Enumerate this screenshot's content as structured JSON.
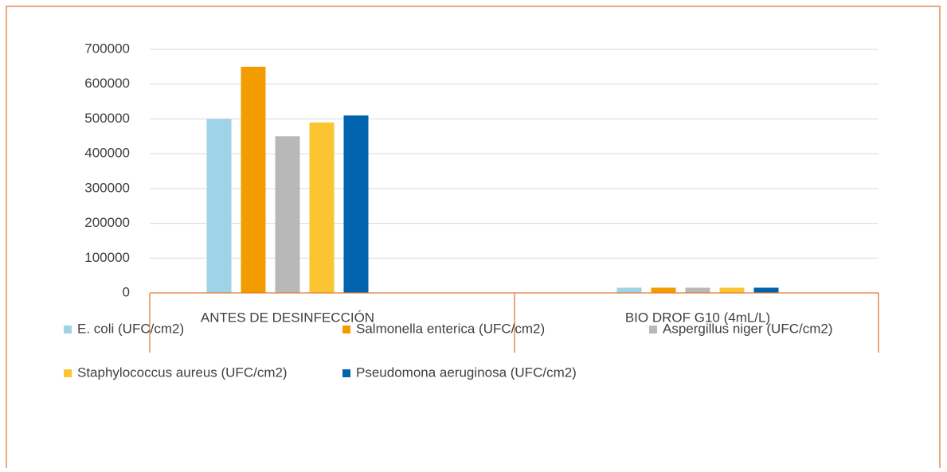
{
  "chart_data": {
    "type": "bar",
    "categories": [
      "ANTES DE DESINFECCIÓN",
      "BIO DROF G10 (4mL/L)"
    ],
    "series": [
      {
        "name": "E. coli (UFC/cm2)",
        "color": "#9fd3e8",
        "values": [
          500000,
          15000
        ]
      },
      {
        "name": "Salmonella enterica (UFC/cm2)",
        "color": "#f39c00",
        "values": [
          650000,
          15000
        ]
      },
      {
        "name": "Aspergillus niger (UFC/cm2)",
        "color": "#b8b8b8",
        "values": [
          450000,
          15000
        ]
      },
      {
        "name": "Staphylococcus aureus (UFC/cm2)",
        "color": "#fbc531",
        "values": [
          490000,
          15000
        ]
      },
      {
        "name": "Pseudomona aeruginosa (UFC/cm2)",
        "color": "#0063ad",
        "values": [
          510000,
          15000
        ]
      }
    ],
    "ylim": [
      0,
      700000
    ],
    "yticks": [
      0,
      100000,
      200000,
      300000,
      400000,
      500000,
      600000,
      700000
    ],
    "grid": true,
    "legend": "bottom"
  }
}
